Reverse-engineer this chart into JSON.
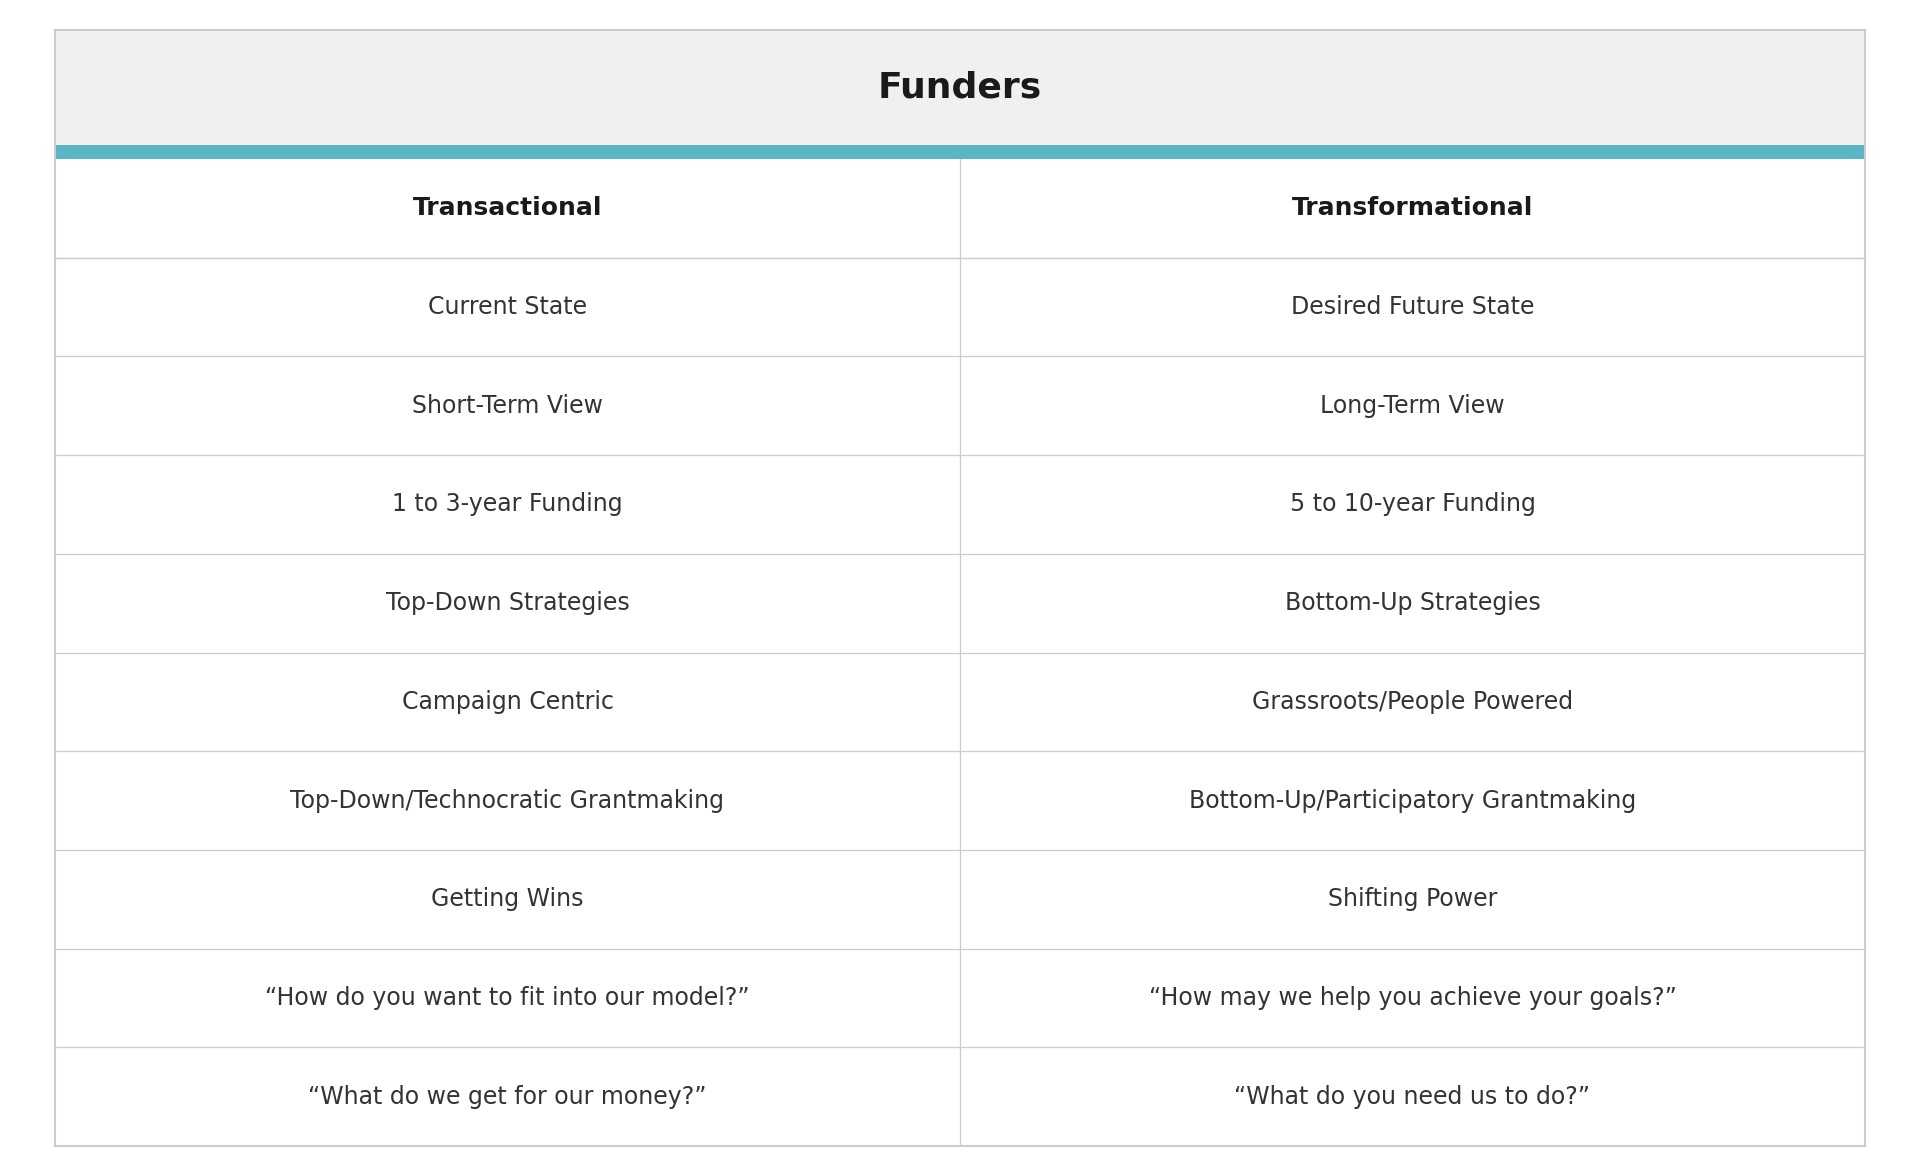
{
  "title": "Funders",
  "col1_header": "Transactional",
  "col2_header": "Transformational",
  "rows": [
    [
      "Current State",
      "Desired Future State"
    ],
    [
      "Short-Term View",
      "Long-Term View"
    ],
    [
      "1 to 3-year Funding",
      "5 to 10-year Funding"
    ],
    [
      "Top-Down Strategies",
      "Bottom-Up Strategies"
    ],
    [
      "Campaign Centric",
      "Grassroots/People Powered"
    ],
    [
      "Top-Down/Technocratic Grantmaking",
      "Bottom-Up/Participatory Grantmaking"
    ],
    [
      "Getting Wins",
      "Shifting Power"
    ],
    [
      "“How do you want to fit into our model?”",
      "“How may we help you achieve your goals?”"
    ],
    [
      "“What do we get for our money?”",
      "“What do you need us to do?”"
    ]
  ],
  "bg_color_title": "#f0f0f0",
  "bg_color_white": "#ffffff",
  "bg_color_outer": "#ffffff",
  "teal_bar_color": "#5ab5c5",
  "grid_line_color": "#cccccc",
  "title_color": "#1a1a1a",
  "header_text_color": "#1a1a1a",
  "body_text_color": "#333333",
  "outer_border_color": "#cccccc",
  "title_fontsize": 26,
  "header_fontsize": 18,
  "body_fontsize": 17
}
